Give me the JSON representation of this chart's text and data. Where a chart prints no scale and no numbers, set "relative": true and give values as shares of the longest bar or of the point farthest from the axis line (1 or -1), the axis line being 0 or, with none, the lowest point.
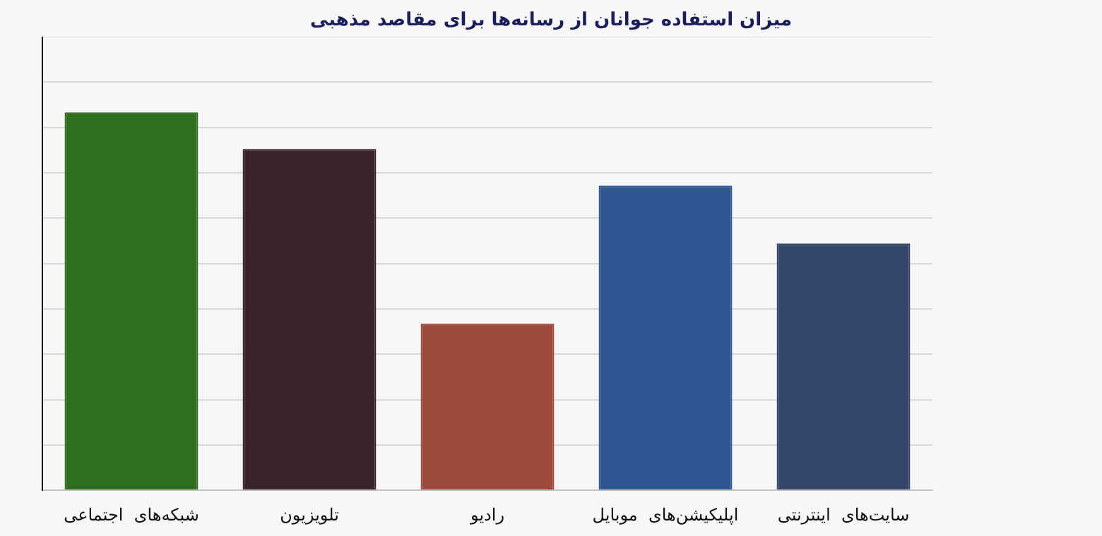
{
  "chart_data": {
    "type": "bar",
    "title": "میزان استفاده جوانان از رسانه‌ها برای مقاصد مذهبی",
    "categories": [
      "شبکه‌های  اجتماعی",
      "تلویزیون",
      "رادیو",
      "اپلیکیشن‌های  موبایل",
      "سایت‌های  اینترنتی"
    ],
    "values": [
      1,
      0.903,
      0.441,
      0.806,
      0.653
    ],
    "colors": [
      "#2e6e1e",
      "#3a222b",
      "#9c4a3c",
      "#2f5690",
      "#34476a"
    ],
    "relative": true,
    "grid": "y",
    "legend": false
  }
}
